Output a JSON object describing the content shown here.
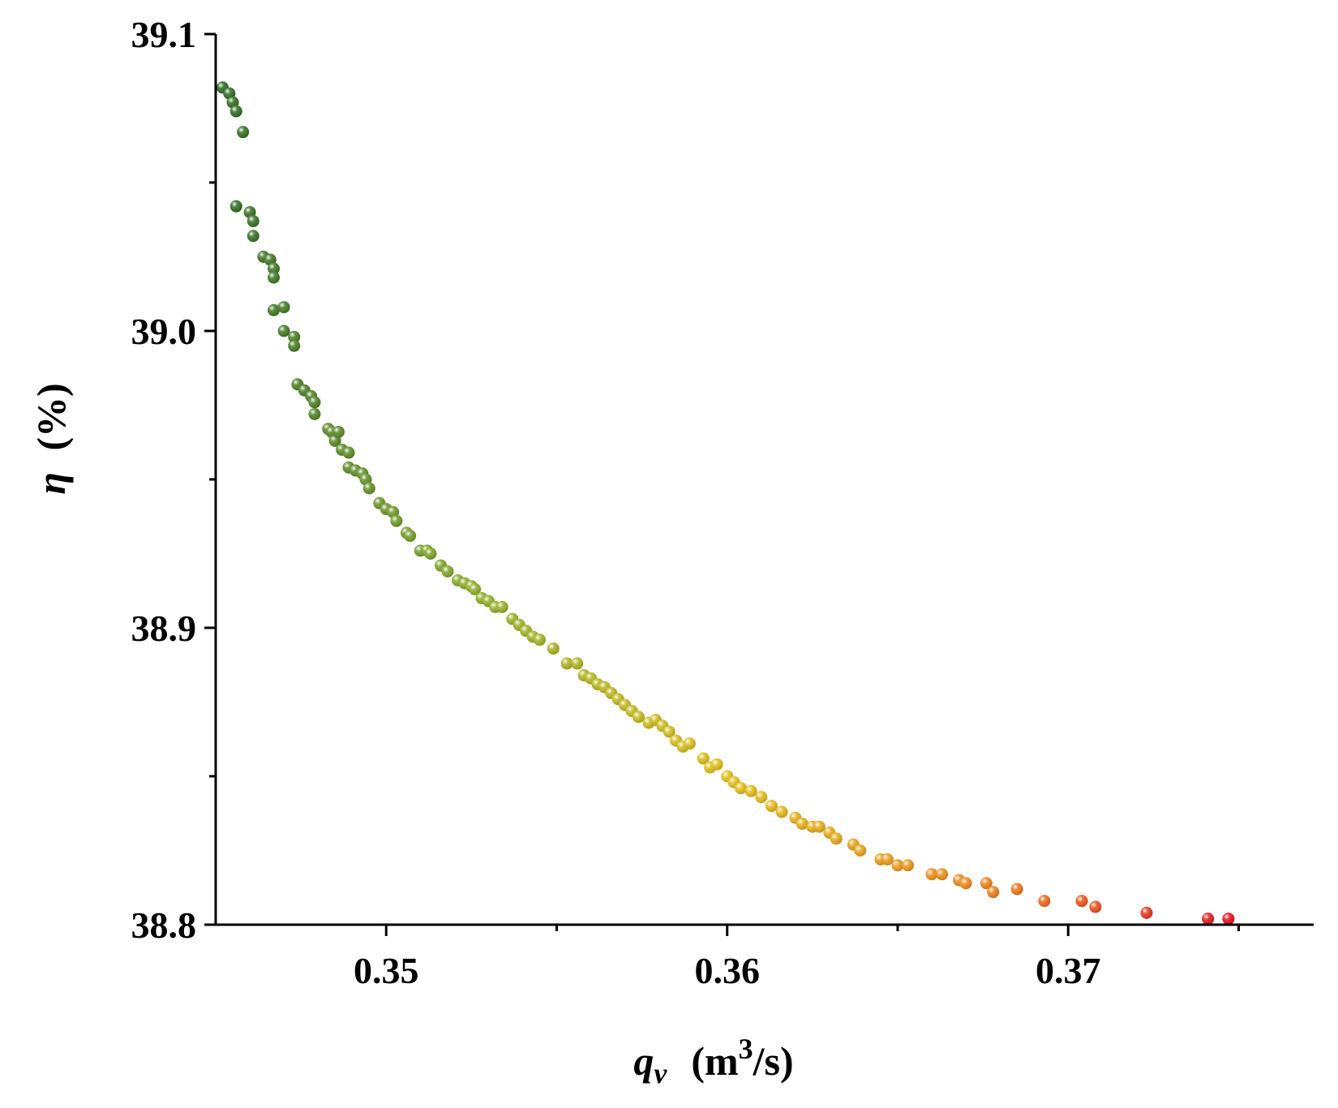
{
  "chart_data": {
    "type": "scatter",
    "title": "",
    "xlabel": {
      "symbol": "q",
      "subscript": "v",
      "unit_open": "(m",
      "unit_sup": "3",
      "unit_close": "/s)"
    },
    "ylabel": {
      "symbol": "η",
      "unit": "(%)"
    },
    "xlim": [
      0.345,
      0.3772
    ],
    "ylim": [
      38.8,
      39.1
    ],
    "x_ticks": [
      0.35,
      0.36,
      0.37
    ],
    "x_tick_labels": [
      "0.35",
      "0.36",
      "0.37"
    ],
    "x_minor_ticks": [
      0.355,
      0.365,
      0.375
    ],
    "y_ticks": [
      38.8,
      38.9,
      39.0,
      39.1
    ],
    "y_tick_labels": [
      "38.8",
      "38.9",
      "39.0",
      "39.1"
    ],
    "y_minor_ticks": [
      38.85,
      38.95,
      39.05
    ],
    "grid": false,
    "legend": "none",
    "color_scale": [
      "#2e6b23",
      "#8fb02a",
      "#e6c41c",
      "#f28a1e",
      "#e8131d"
    ],
    "points": [
      {
        "x": 0.3452,
        "y": 39.082
      },
      {
        "x": 0.3454,
        "y": 39.08
      },
      {
        "x": 0.3455,
        "y": 39.077
      },
      {
        "x": 0.3456,
        "y": 39.074
      },
      {
        "x": 0.3458,
        "y": 39.067
      },
      {
        "x": 0.3456,
        "y": 39.042
      },
      {
        "x": 0.346,
        "y": 39.04
      },
      {
        "x": 0.3461,
        "y": 39.037
      },
      {
        "x": 0.3461,
        "y": 39.032
      },
      {
        "x": 0.3464,
        "y": 39.025
      },
      {
        "x": 0.3466,
        "y": 39.024
      },
      {
        "x": 0.3467,
        "y": 39.021
      },
      {
        "x": 0.3467,
        "y": 39.018
      },
      {
        "x": 0.3467,
        "y": 39.007
      },
      {
        "x": 0.347,
        "y": 39.008
      },
      {
        "x": 0.347,
        "y": 39.0
      },
      {
        "x": 0.3473,
        "y": 38.998
      },
      {
        "x": 0.3473,
        "y": 38.995
      },
      {
        "x": 0.3474,
        "y": 38.982
      },
      {
        "x": 0.3476,
        "y": 38.98
      },
      {
        "x": 0.3478,
        "y": 38.978
      },
      {
        "x": 0.3479,
        "y": 38.976
      },
      {
        "x": 0.3479,
        "y": 38.972
      },
      {
        "x": 0.3483,
        "y": 38.967
      },
      {
        "x": 0.3484,
        "y": 38.966
      },
      {
        "x": 0.3485,
        "y": 38.963
      },
      {
        "x": 0.3486,
        "y": 38.966
      },
      {
        "x": 0.3487,
        "y": 38.96
      },
      {
        "x": 0.3489,
        "y": 38.959
      },
      {
        "x": 0.3489,
        "y": 38.954
      },
      {
        "x": 0.3491,
        "y": 38.953
      },
      {
        "x": 0.3493,
        "y": 38.952
      },
      {
        "x": 0.3494,
        "y": 38.95
      },
      {
        "x": 0.3495,
        "y": 38.947
      },
      {
        "x": 0.3498,
        "y": 38.942
      },
      {
        "x": 0.35,
        "y": 38.94
      },
      {
        "x": 0.3502,
        "y": 38.939
      },
      {
        "x": 0.3503,
        "y": 38.936
      },
      {
        "x": 0.3506,
        "y": 38.932
      },
      {
        "x": 0.3507,
        "y": 38.931
      },
      {
        "x": 0.351,
        "y": 38.926
      },
      {
        "x": 0.3512,
        "y": 38.926
      },
      {
        "x": 0.3513,
        "y": 38.925
      },
      {
        "x": 0.3516,
        "y": 38.921
      },
      {
        "x": 0.3518,
        "y": 38.919
      },
      {
        "x": 0.3521,
        "y": 38.916
      },
      {
        "x": 0.3523,
        "y": 38.915
      },
      {
        "x": 0.3525,
        "y": 38.914
      },
      {
        "x": 0.3526,
        "y": 38.913
      },
      {
        "x": 0.3528,
        "y": 38.91
      },
      {
        "x": 0.353,
        "y": 38.909
      },
      {
        "x": 0.3532,
        "y": 38.907
      },
      {
        "x": 0.3534,
        "y": 38.907
      },
      {
        "x": 0.3537,
        "y": 38.903
      },
      {
        "x": 0.3539,
        "y": 38.901
      },
      {
        "x": 0.3541,
        "y": 38.899
      },
      {
        "x": 0.3543,
        "y": 38.897
      },
      {
        "x": 0.3545,
        "y": 38.896
      },
      {
        "x": 0.3549,
        "y": 38.893
      },
      {
        "x": 0.3553,
        "y": 38.888
      },
      {
        "x": 0.3556,
        "y": 38.888
      },
      {
        "x": 0.3558,
        "y": 38.884
      },
      {
        "x": 0.356,
        "y": 38.883
      },
      {
        "x": 0.3562,
        "y": 38.881
      },
      {
        "x": 0.3564,
        "y": 38.88
      },
      {
        "x": 0.3566,
        "y": 38.878
      },
      {
        "x": 0.3568,
        "y": 38.876
      },
      {
        "x": 0.357,
        "y": 38.874
      },
      {
        "x": 0.3572,
        "y": 38.872
      },
      {
        "x": 0.3574,
        "y": 38.87
      },
      {
        "x": 0.3577,
        "y": 38.868
      },
      {
        "x": 0.3579,
        "y": 38.869
      },
      {
        "x": 0.3581,
        "y": 38.867
      },
      {
        "x": 0.3583,
        "y": 38.865
      },
      {
        "x": 0.3585,
        "y": 38.862
      },
      {
        "x": 0.3587,
        "y": 38.86
      },
      {
        "x": 0.3589,
        "y": 38.861
      },
      {
        "x": 0.3593,
        "y": 38.856
      },
      {
        "x": 0.3595,
        "y": 38.853
      },
      {
        "x": 0.3597,
        "y": 38.854
      },
      {
        "x": 0.36,
        "y": 38.85
      },
      {
        "x": 0.3602,
        "y": 38.848
      },
      {
        "x": 0.3604,
        "y": 38.846
      },
      {
        "x": 0.3607,
        "y": 38.845
      },
      {
        "x": 0.361,
        "y": 38.843
      },
      {
        "x": 0.3613,
        "y": 38.84
      },
      {
        "x": 0.3616,
        "y": 38.838
      },
      {
        "x": 0.362,
        "y": 38.836
      },
      {
        "x": 0.3622,
        "y": 38.834
      },
      {
        "x": 0.3625,
        "y": 38.833
      },
      {
        "x": 0.3627,
        "y": 38.833
      },
      {
        "x": 0.363,
        "y": 38.831
      },
      {
        "x": 0.3632,
        "y": 38.829
      },
      {
        "x": 0.3637,
        "y": 38.827
      },
      {
        "x": 0.3639,
        "y": 38.825
      },
      {
        "x": 0.3645,
        "y": 38.822
      },
      {
        "x": 0.3647,
        "y": 38.822
      },
      {
        "x": 0.365,
        "y": 38.82
      },
      {
        "x": 0.3653,
        "y": 38.82
      },
      {
        "x": 0.366,
        "y": 38.817
      },
      {
        "x": 0.3663,
        "y": 38.817
      },
      {
        "x": 0.3668,
        "y": 38.815
      },
      {
        "x": 0.367,
        "y": 38.814
      },
      {
        "x": 0.3676,
        "y": 38.814
      },
      {
        "x": 0.3678,
        "y": 38.811
      },
      {
        "x": 0.3685,
        "y": 38.812
      },
      {
        "x": 0.3693,
        "y": 38.808
      },
      {
        "x": 0.3704,
        "y": 38.808
      },
      {
        "x": 0.3708,
        "y": 38.806
      },
      {
        "x": 0.3723,
        "y": 38.804
      },
      {
        "x": 0.3741,
        "y": 38.802
      },
      {
        "x": 0.3747,
        "y": 38.802
      }
    ]
  }
}
